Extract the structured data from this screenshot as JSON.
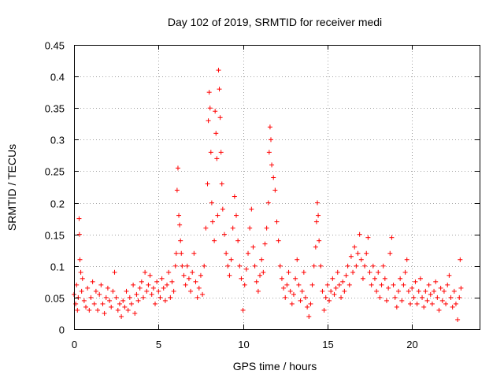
{
  "chart_data": {
    "type": "scatter",
    "title": "Day 102 of 2019, SRMTID for receiver medi",
    "xlabel": "GPS time / hours",
    "ylabel": "SRMTID / TECUs",
    "xlim": [
      0,
      24
    ],
    "ylim": [
      0,
      0.45
    ],
    "xticks": [
      0,
      5,
      10,
      15,
      20
    ],
    "xtick_labels": [
      "0",
      "5",
      "10",
      "15",
      "20"
    ],
    "yticks": [
      0,
      0.05,
      0.1,
      0.15,
      0.2,
      0.25,
      0.3,
      0.35,
      0.4,
      0.45
    ],
    "ytick_labels": [
      "0",
      "0.05",
      "0.1",
      "0.15",
      "0.2",
      "0.25",
      "0.3",
      "0.35",
      "0.4",
      "0.45"
    ],
    "grid": true,
    "marker": "plus",
    "series": [
      {
        "name": "SRMTID",
        "color": "#ff0000",
        "points": [
          [
            0.0,
            0.055
          ],
          [
            0.1,
            0.04
          ],
          [
            0.15,
            0.07
          ],
          [
            0.2,
            0.03
          ],
          [
            0.25,
            0.05
          ],
          [
            0.3,
            0.175
          ],
          [
            0.32,
            0.15
          ],
          [
            0.35,
            0.11
          ],
          [
            0.4,
            0.09
          ],
          [
            0.45,
            0.06
          ],
          [
            0.5,
            0.08
          ],
          [
            0.6,
            0.045
          ],
          [
            0.7,
            0.035
          ],
          [
            0.8,
            0.065
          ],
          [
            0.9,
            0.03
          ],
          [
            1.0,
            0.05
          ],
          [
            1.1,
            0.075
          ],
          [
            1.2,
            0.04
          ],
          [
            1.3,
            0.06
          ],
          [
            1.4,
            0.03
          ],
          [
            1.5,
            0.055
          ],
          [
            1.6,
            0.07
          ],
          [
            1.7,
            0.04
          ],
          [
            1.8,
            0.025
          ],
          [
            1.9,
            0.05
          ],
          [
            2.0,
            0.065
          ],
          [
            2.1,
            0.045
          ],
          [
            2.2,
            0.035
          ],
          [
            2.3,
            0.06
          ],
          [
            2.4,
            0.09
          ],
          [
            2.5,
            0.05
          ],
          [
            2.6,
            0.03
          ],
          [
            2.7,
            0.04
          ],
          [
            2.8,
            0.02
          ],
          [
            2.9,
            0.045
          ],
          [
            3.0,
            0.035
          ],
          [
            3.1,
            0.06
          ],
          [
            3.2,
            0.03
          ],
          [
            3.3,
            0.05
          ],
          [
            3.4,
            0.04
          ],
          [
            3.5,
            0.07
          ],
          [
            3.6,
            0.025
          ],
          [
            3.7,
            0.055
          ],
          [
            3.8,
            0.045
          ],
          [
            3.9,
            0.065
          ],
          [
            4.0,
            0.075
          ],
          [
            4.1,
            0.05
          ],
          [
            4.2,
            0.09
          ],
          [
            4.3,
            0.06
          ],
          [
            4.4,
            0.07
          ],
          [
            4.5,
            0.085
          ],
          [
            4.6,
            0.055
          ],
          [
            4.7,
            0.065
          ],
          [
            4.8,
            0.04
          ],
          [
            4.9,
            0.075
          ],
          [
            5.0,
            0.06
          ],
          [
            5.1,
            0.05
          ],
          [
            5.2,
            0.08
          ],
          [
            5.3,
            0.065
          ],
          [
            5.4,
            0.045
          ],
          [
            5.5,
            0.07
          ],
          [
            5.6,
            0.09
          ],
          [
            5.7,
            0.05
          ],
          [
            5.8,
            0.075
          ],
          [
            5.9,
            0.06
          ],
          [
            6.0,
            0.1
          ],
          [
            6.05,
            0.12
          ],
          [
            6.1,
            0.22
          ],
          [
            6.15,
            0.255
          ],
          [
            6.2,
            0.18
          ],
          [
            6.25,
            0.165
          ],
          [
            6.3,
            0.14
          ],
          [
            6.35,
            0.12
          ],
          [
            6.4,
            0.1
          ],
          [
            6.5,
            0.085
          ],
          [
            6.6,
            0.07
          ],
          [
            6.7,
            0.1
          ],
          [
            6.8,
            0.08
          ],
          [
            6.9,
            0.06
          ],
          [
            7.0,
            0.09
          ],
          [
            7.1,
            0.12
          ],
          [
            7.2,
            0.075
          ],
          [
            7.3,
            0.05
          ],
          [
            7.4,
            0.065
          ],
          [
            7.5,
            0.085
          ],
          [
            7.6,
            0.055
          ],
          [
            7.7,
            0.1
          ],
          [
            7.8,
            0.16
          ],
          [
            7.9,
            0.23
          ],
          [
            7.95,
            0.33
          ],
          [
            8.0,
            0.375
          ],
          [
            8.05,
            0.35
          ],
          [
            8.1,
            0.28
          ],
          [
            8.15,
            0.2
          ],
          [
            8.2,
            0.17
          ],
          [
            8.3,
            0.14
          ],
          [
            8.35,
            0.345
          ],
          [
            8.4,
            0.31
          ],
          [
            8.45,
            0.27
          ],
          [
            8.5,
            0.18
          ],
          [
            8.55,
            0.41
          ],
          [
            8.6,
            0.38
          ],
          [
            8.65,
            0.335
          ],
          [
            8.7,
            0.28
          ],
          [
            8.75,
            0.23
          ],
          [
            8.8,
            0.19
          ],
          [
            8.9,
            0.15
          ],
          [
            9.0,
            0.12
          ],
          [
            9.1,
            0.1
          ],
          [
            9.2,
            0.085
          ],
          [
            9.3,
            0.11
          ],
          [
            9.4,
            0.16
          ],
          [
            9.5,
            0.21
          ],
          [
            9.6,
            0.18
          ],
          [
            9.7,
            0.14
          ],
          [
            9.8,
            0.1
          ],
          [
            9.9,
            0.08
          ],
          [
            10.0,
            0.03
          ],
          [
            10.1,
            0.07
          ],
          [
            10.2,
            0.095
          ],
          [
            10.3,
            0.12
          ],
          [
            10.4,
            0.16
          ],
          [
            10.5,
            0.19
          ],
          [
            10.6,
            0.13
          ],
          [
            10.7,
            0.1
          ],
          [
            10.8,
            0.075
          ],
          [
            10.9,
            0.06
          ],
          [
            11.0,
            0.085
          ],
          [
            11.1,
            0.11
          ],
          [
            11.2,
            0.09
          ],
          [
            11.3,
            0.135
          ],
          [
            11.4,
            0.16
          ],
          [
            11.5,
            0.2
          ],
          [
            11.55,
            0.28
          ],
          [
            11.6,
            0.32
          ],
          [
            11.65,
            0.3
          ],
          [
            11.7,
            0.26
          ],
          [
            11.8,
            0.24
          ],
          [
            11.9,
            0.22
          ],
          [
            12.0,
            0.17
          ],
          [
            12.1,
            0.14
          ],
          [
            12.2,
            0.1
          ],
          [
            12.3,
            0.08
          ],
          [
            12.4,
            0.065
          ],
          [
            12.5,
            0.05
          ],
          [
            12.6,
            0.07
          ],
          [
            12.7,
            0.09
          ],
          [
            12.8,
            0.06
          ],
          [
            12.9,
            0.04
          ],
          [
            13.0,
            0.055
          ],
          [
            13.1,
            0.08
          ],
          [
            13.2,
            0.11
          ],
          [
            13.3,
            0.07
          ],
          [
            13.4,
            0.045
          ],
          [
            13.5,
            0.06
          ],
          [
            13.6,
            0.09
          ],
          [
            13.7,
            0.05
          ],
          [
            13.8,
            0.035
          ],
          [
            13.9,
            0.02
          ],
          [
            14.0,
            0.04
          ],
          [
            14.1,
            0.07
          ],
          [
            14.2,
            0.1
          ],
          [
            14.3,
            0.13
          ],
          [
            14.35,
            0.17
          ],
          [
            14.4,
            0.2
          ],
          [
            14.45,
            0.18
          ],
          [
            14.5,
            0.14
          ],
          [
            14.6,
            0.1
          ],
          [
            14.7,
            0.06
          ],
          [
            14.8,
            0.03
          ],
          [
            14.9,
            0.05
          ],
          [
            15.0,
            0.07
          ],
          [
            15.1,
            0.045
          ],
          [
            15.2,
            0.06
          ],
          [
            15.3,
            0.08
          ],
          [
            15.4,
            0.055
          ],
          [
            15.5,
            0.065
          ],
          [
            15.6,
            0.09
          ],
          [
            15.7,
            0.07
          ],
          [
            15.8,
            0.05
          ],
          [
            15.9,
            0.075
          ],
          [
            16.0,
            0.06
          ],
          [
            16.1,
            0.085
          ],
          [
            16.2,
            0.1
          ],
          [
            16.3,
            0.07
          ],
          [
            16.4,
            0.115
          ],
          [
            16.5,
            0.09
          ],
          [
            16.6,
            0.13
          ],
          [
            16.7,
            0.1
          ],
          [
            16.8,
            0.12
          ],
          [
            16.9,
            0.15
          ],
          [
            17.0,
            0.11
          ],
          [
            17.1,
            0.08
          ],
          [
            17.2,
            0.1
          ],
          [
            17.3,
            0.12
          ],
          [
            17.4,
            0.145
          ],
          [
            17.5,
            0.09
          ],
          [
            17.6,
            0.07
          ],
          [
            17.7,
            0.1
          ],
          [
            17.8,
            0.08
          ],
          [
            17.9,
            0.06
          ],
          [
            18.0,
            0.09
          ],
          [
            18.1,
            0.05
          ],
          [
            18.2,
            0.07
          ],
          [
            18.3,
            0.1
          ],
          [
            18.4,
            0.08
          ],
          [
            18.5,
            0.045
          ],
          [
            18.6,
            0.065
          ],
          [
            18.7,
            0.12
          ],
          [
            18.8,
            0.145
          ],
          [
            18.9,
            0.07
          ],
          [
            19.0,
            0.05
          ],
          [
            19.1,
            0.035
          ],
          [
            19.2,
            0.06
          ],
          [
            19.3,
            0.08
          ],
          [
            19.4,
            0.045
          ],
          [
            19.5,
            0.07
          ],
          [
            19.6,
            0.09
          ],
          [
            19.7,
            0.11
          ],
          [
            19.8,
            0.06
          ],
          [
            19.9,
            0.04
          ],
          [
            20.0,
            0.065
          ],
          [
            20.1,
            0.05
          ],
          [
            20.2,
            0.075
          ],
          [
            20.3,
            0.04
          ],
          [
            20.4,
            0.06
          ],
          [
            20.5,
            0.08
          ],
          [
            20.6,
            0.05
          ],
          [
            20.7,
            0.035
          ],
          [
            20.8,
            0.06
          ],
          [
            20.9,
            0.045
          ],
          [
            21.0,
            0.07
          ],
          [
            21.1,
            0.055
          ],
          [
            21.2,
            0.04
          ],
          [
            21.3,
            0.06
          ],
          [
            21.4,
            0.075
          ],
          [
            21.5,
            0.05
          ],
          [
            21.6,
            0.03
          ],
          [
            21.7,
            0.065
          ],
          [
            21.8,
            0.045
          ],
          [
            21.9,
            0.06
          ],
          [
            22.0,
            0.04
          ],
          [
            22.1,
            0.07
          ],
          [
            22.2,
            0.085
          ],
          [
            22.3,
            0.05
          ],
          [
            22.4,
            0.035
          ],
          [
            22.5,
            0.06
          ],
          [
            22.6,
            0.04
          ],
          [
            22.7,
            0.015
          ],
          [
            22.8,
            0.05
          ],
          [
            22.85,
            0.11
          ],
          [
            22.9,
            0.065
          ]
        ]
      }
    ]
  }
}
